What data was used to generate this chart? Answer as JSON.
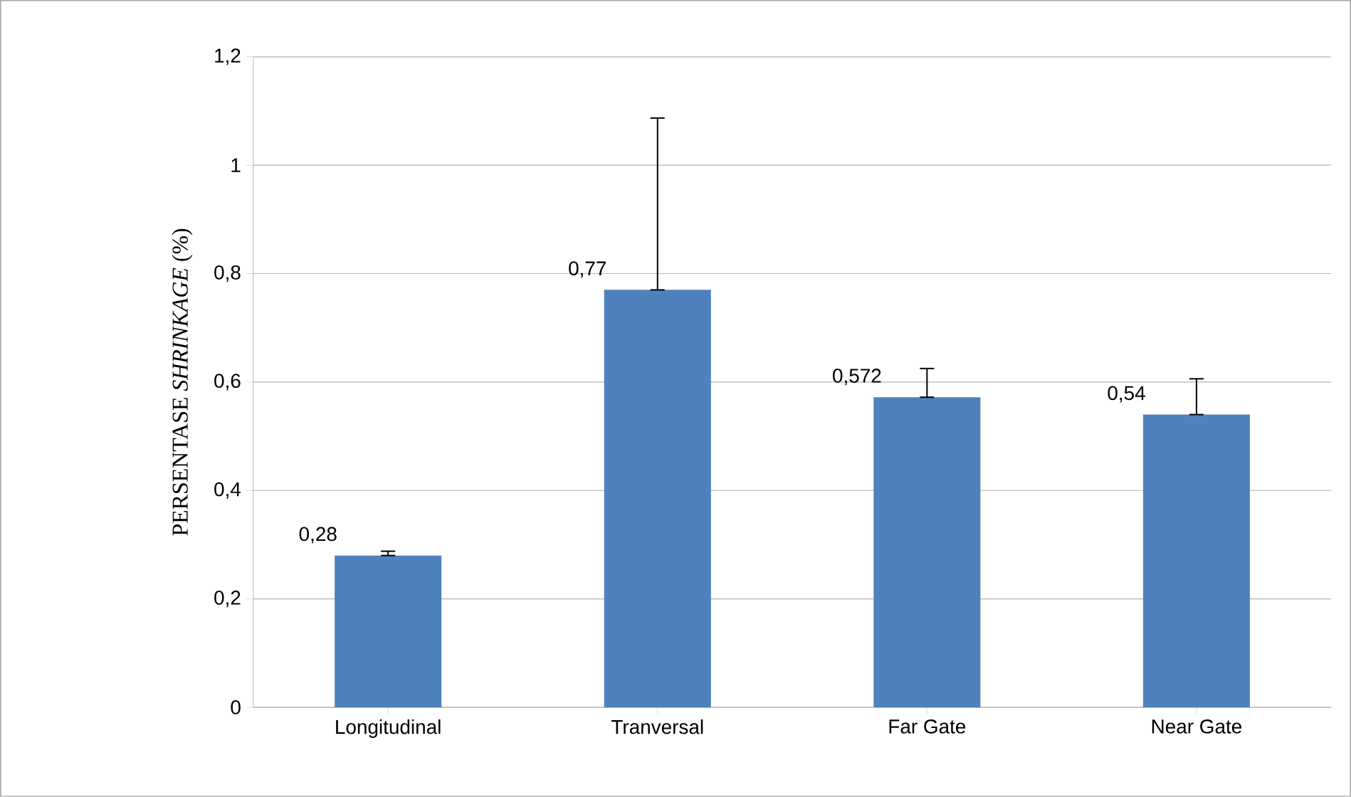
{
  "chart_data": {
    "type": "bar",
    "ylabel": "PERSENTASE *SHRINKAGE* (%)",
    "categories": [
      "Longitudinal",
      "Tranversal",
      "Far Gate",
      "Near Gate"
    ],
    "values": [
      0.28,
      0.77,
      0.572,
      0.54
    ],
    "value_labels": [
      "0,28",
      "0,77",
      "0,572",
      "0,54"
    ],
    "errors": [
      [
        0.28,
        0.288
      ],
      [
        0.77,
        1.087
      ],
      [
        0.572,
        0.625
      ],
      [
        0.54,
        0.606
      ]
    ],
    "color": "#4f81bd",
    "ylim": [
      0,
      1.2
    ],
    "yticks": [
      0,
      {
        "value": 0.2,
        "label": "0,2"
      },
      {
        "value": 0.4,
        "label": "0,4"
      },
      {
        "value": 0.6,
        "label": "0,6"
      },
      {
        "value": 0.8,
        "label": "0,8"
      },
      {
        "value": 1,
        "label": "1"
      },
      {
        "value": 1.2,
        "label": "1,2"
      }
    ],
    "grid": "y"
  }
}
